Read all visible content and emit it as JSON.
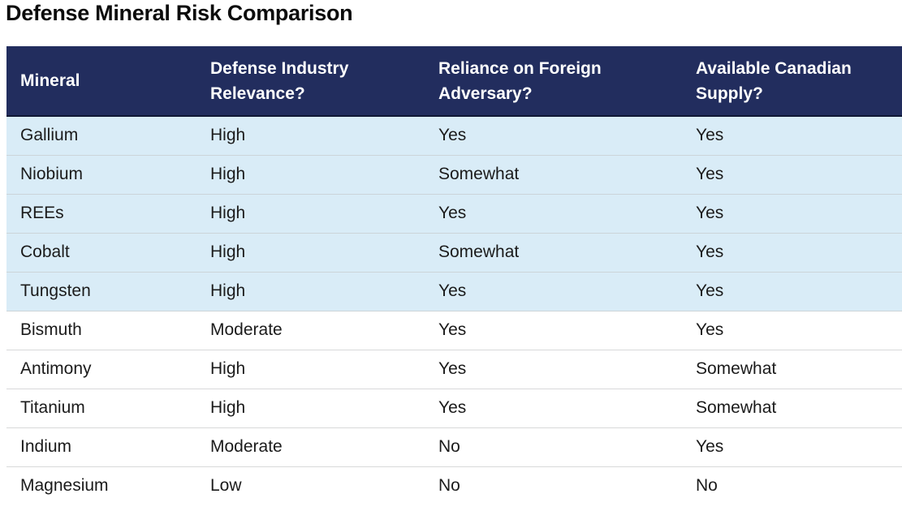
{
  "page": {
    "title": "Defense Mineral Risk Comparison"
  },
  "colors": {
    "header_bg": "#222d5e",
    "header_text": "#ffffff",
    "row_highlight": "#d9ecf7",
    "row_plain": "#ffffff",
    "body_text": "#1b1b1b",
    "separator": "#ccd4d9"
  },
  "table": {
    "columns": [
      "Mineral",
      "Defense Industry Relevance?",
      "Reliance on Foreign Adversary?",
      "Available Canadian Supply?"
    ],
    "rows": [
      {
        "cells": [
          "Gallium",
          "High",
          "Yes",
          "Yes"
        ],
        "highlighted": true
      },
      {
        "cells": [
          "Niobium",
          "High",
          "Somewhat",
          "Yes"
        ],
        "highlighted": true
      },
      {
        "cells": [
          "REEs",
          "High",
          "Yes",
          "Yes"
        ],
        "highlighted": true
      },
      {
        "cells": [
          "Cobalt",
          "High",
          "Somewhat",
          "Yes"
        ],
        "highlighted": true
      },
      {
        "cells": [
          "Tungsten",
          "High",
          "Yes",
          "Yes"
        ],
        "highlighted": true
      },
      {
        "cells": [
          "Bismuth",
          "Moderate",
          "Yes",
          "Yes"
        ],
        "highlighted": false
      },
      {
        "cells": [
          "Antimony",
          "High",
          "Yes",
          "Somewhat"
        ],
        "highlighted": false
      },
      {
        "cells": [
          "Titanium",
          "High",
          "Yes",
          "Somewhat"
        ],
        "highlighted": false
      },
      {
        "cells": [
          "Indium",
          "Moderate",
          "No",
          "Yes"
        ],
        "highlighted": false
      },
      {
        "cells": [
          "Magnesium",
          "Low",
          "No",
          "No"
        ],
        "highlighted": false
      }
    ]
  },
  "chart_data": {
    "type": "table",
    "title": "Defense Mineral Risk Comparison",
    "columns": [
      "Mineral",
      "Defense Industry Relevance?",
      "Reliance on Foreign Adversary?",
      "Available Canadian Supply?"
    ],
    "rows": [
      [
        "Gallium",
        "High",
        "Yes",
        "Yes"
      ],
      [
        "Niobium",
        "High",
        "Somewhat",
        "Yes"
      ],
      [
        "REEs",
        "High",
        "Yes",
        "Yes"
      ],
      [
        "Cobalt",
        "High",
        "Somewhat",
        "Yes"
      ],
      [
        "Tungsten",
        "High",
        "Yes",
        "Yes"
      ],
      [
        "Bismuth",
        "Moderate",
        "Yes",
        "Yes"
      ],
      [
        "Antimony",
        "High",
        "Yes",
        "Somewhat"
      ],
      [
        "Titanium",
        "High",
        "Yes",
        "Somewhat"
      ],
      [
        "Indium",
        "Moderate",
        "No",
        "Yes"
      ],
      [
        "Magnesium",
        "Low",
        "No",
        "No"
      ]
    ],
    "layout_hints": {
      "highlighted_row_indices": [
        0,
        1,
        2,
        3,
        4
      ],
      "header_style": "dark-navy-bar",
      "last_row_clipped_by_viewport": true
    }
  }
}
